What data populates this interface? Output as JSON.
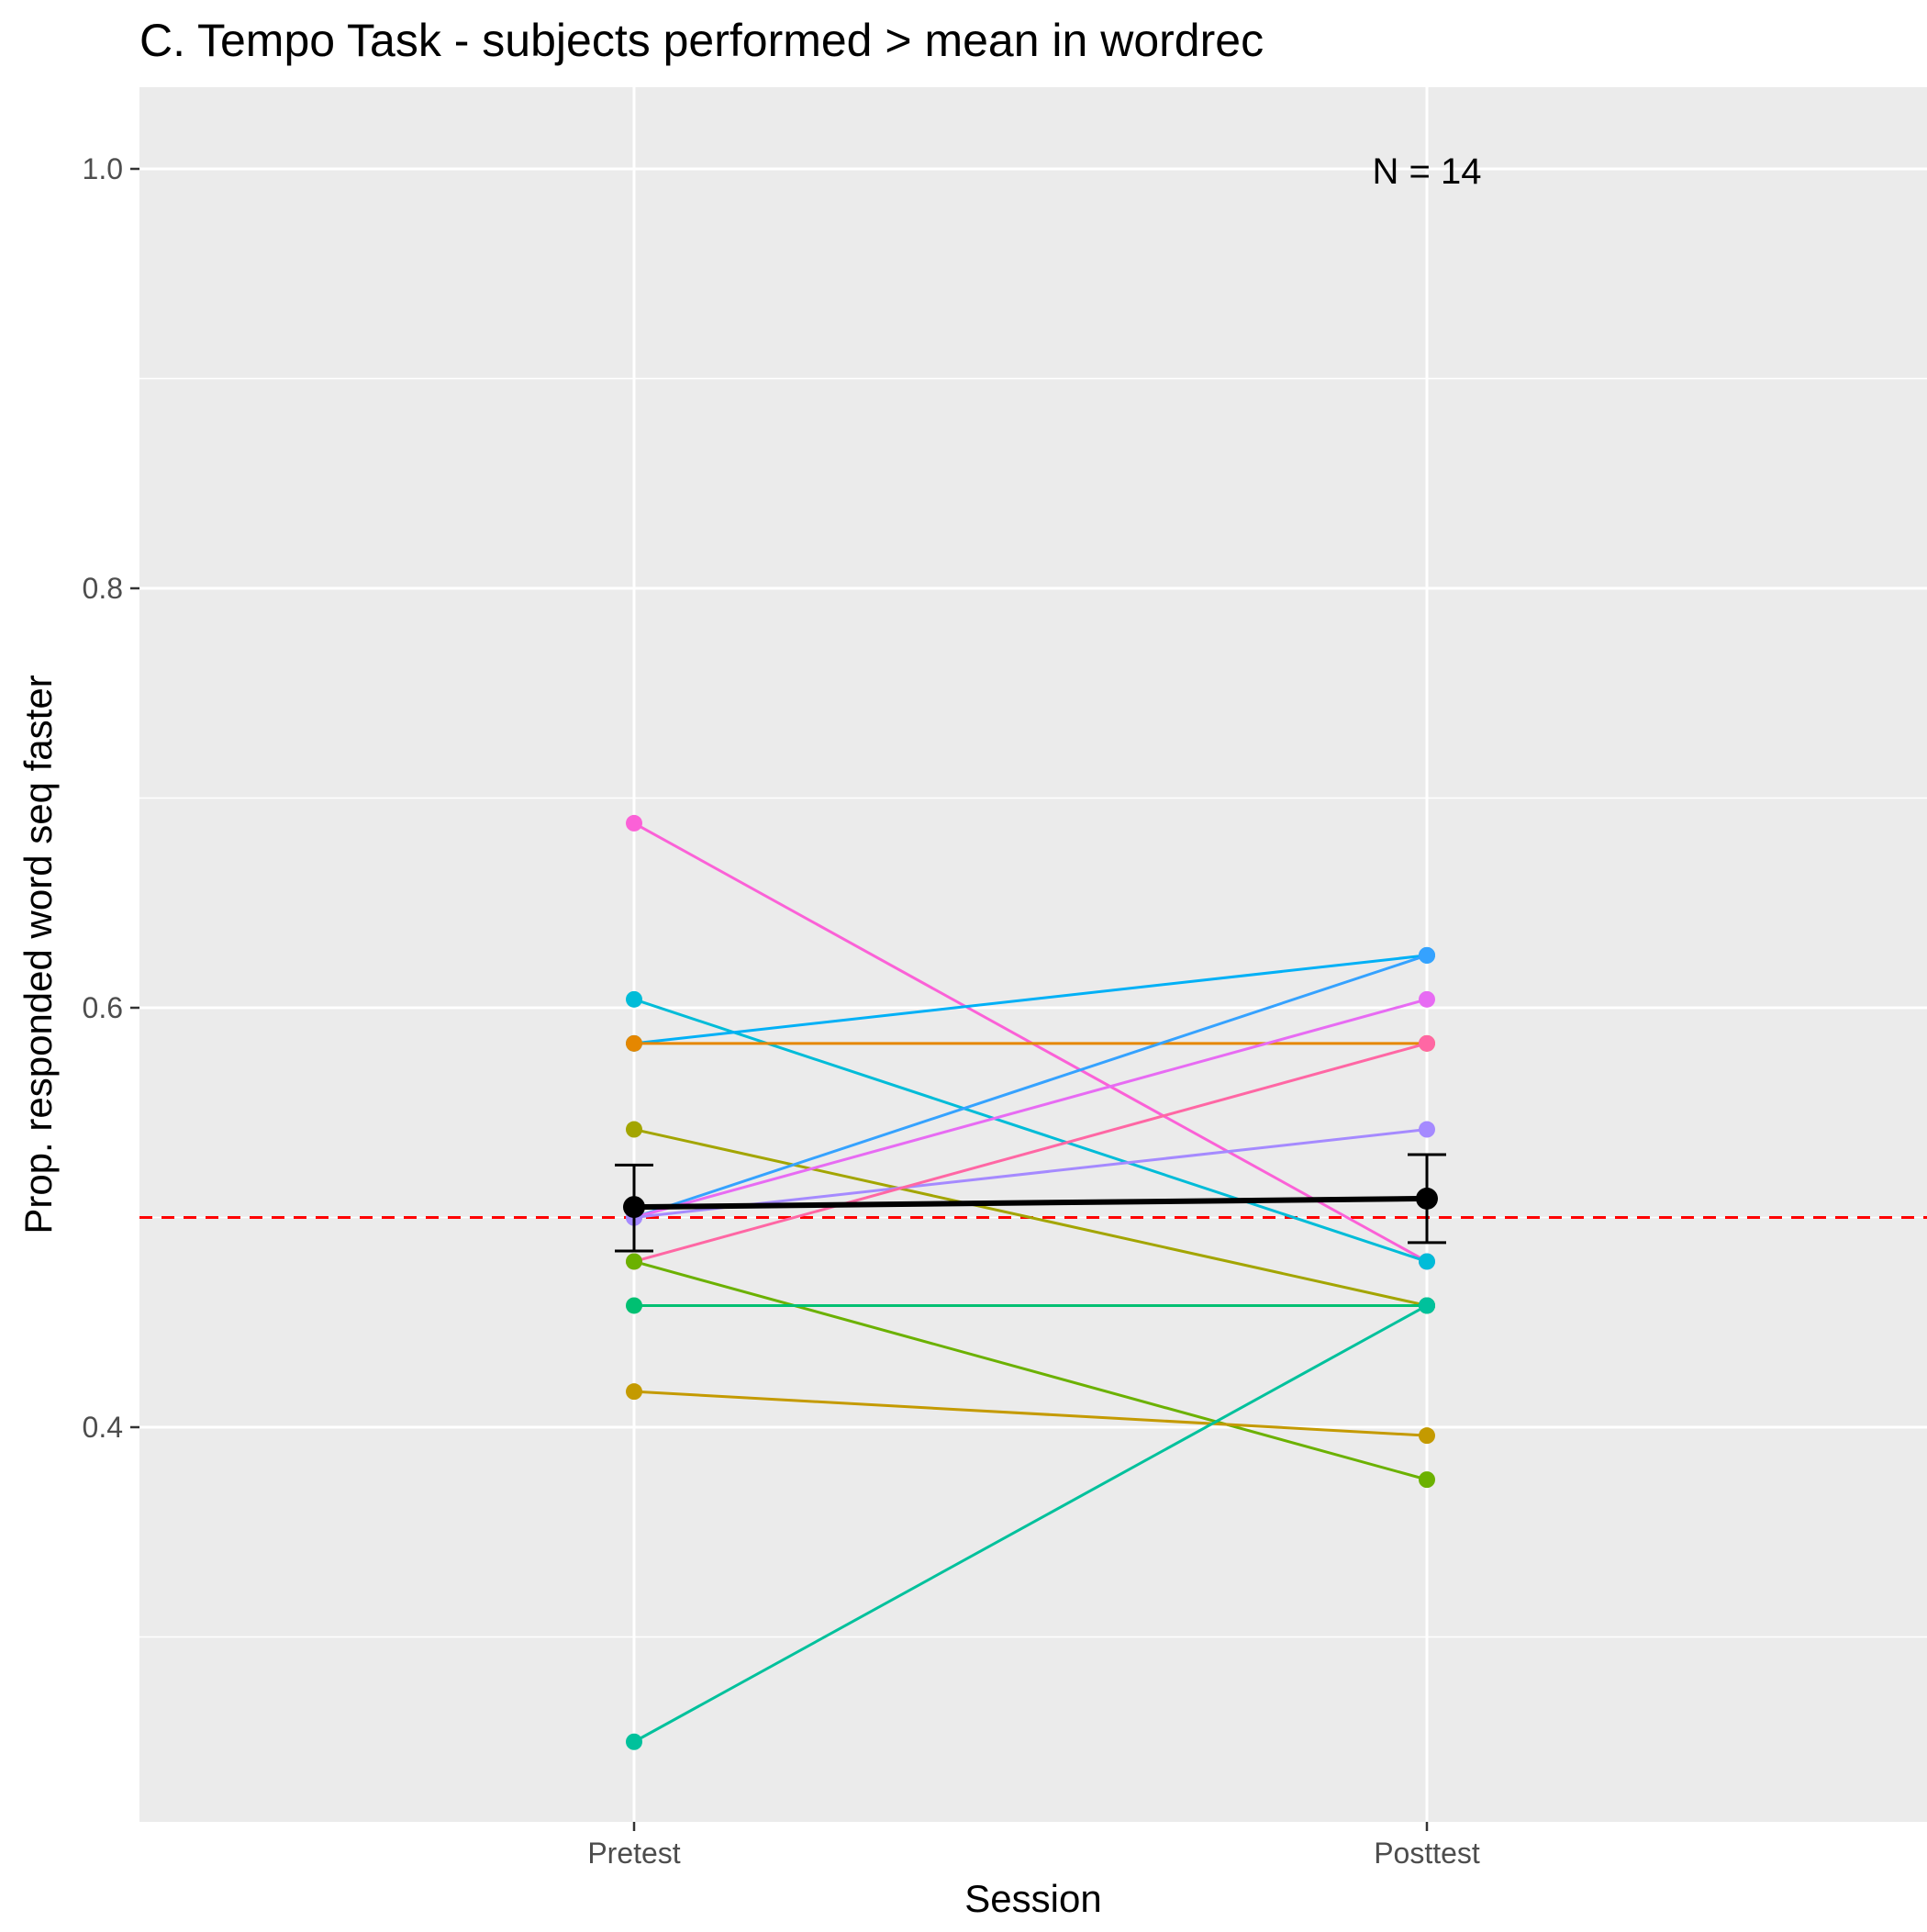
{
  "chart_data": {
    "type": "line",
    "title": "C. Tempo Task - subjects performed > mean in wordrec",
    "xlabel": "Session",
    "ylabel": "Prop. responded word seq faster",
    "categories": [
      "Pretest",
      "Posttest"
    ],
    "ylim": [
      0.21,
      1.04
    ],
    "yticks": [
      0.4,
      0.6,
      0.8,
      1.0
    ],
    "ytick_labels": [
      "0.4",
      "0.6",
      "0.8",
      "1.0"
    ],
    "grid": true,
    "legend": "none",
    "annotation": "N = 14",
    "reference_line": {
      "y": 0.5,
      "color": "#ff0000",
      "style": "dashed"
    },
    "series": [
      {
        "values": [
          0.688,
          0.479
        ],
        "color": "#fb61d7"
      },
      {
        "values": [
          0.604,
          0.479
        ],
        "color": "#00bcd8"
      },
      {
        "values": [
          0.583,
          0.625
        ],
        "color": "#00b0f6"
      },
      {
        "values": [
          0.583,
          0.583
        ],
        "color": "#e58700"
      },
      {
        "values": [
          0.542,
          0.458
        ],
        "color": "#a3a500"
      },
      {
        "values": [
          0.5,
          0.625
        ],
        "color": "#35a2ff"
      },
      {
        "values": [
          0.5,
          0.604
        ],
        "color": "#e76bf3"
      },
      {
        "values": [
          0.5,
          0.542
        ],
        "color": "#a58aff"
      },
      {
        "values": [
          0.479,
          0.583
        ],
        "color": "#ff67a4"
      },
      {
        "values": [
          0.479,
          0.375
        ],
        "color": "#6bb100"
      },
      {
        "values": [
          0.458,
          0.458
        ],
        "color": "#00c072"
      },
      {
        "values": [
          0.417,
          0.396
        ],
        "color": "#c49a00"
      },
      {
        "values": [
          0.25,
          0.458
        ],
        "color": "#00c19c"
      }
    ],
    "mean": {
      "values": [
        0.505,
        0.509
      ],
      "error_low": [
        0.484,
        0.488
      ],
      "error_high": [
        0.525,
        0.53
      ],
      "color": "#000000"
    }
  }
}
